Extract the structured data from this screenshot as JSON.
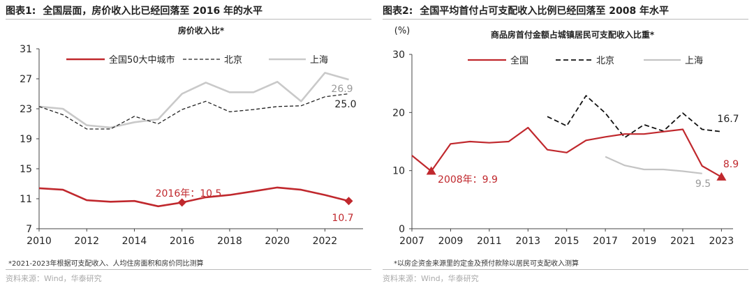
{
  "charts": [
    {
      "title_label": "图表1:",
      "title_text": "全国层面，房价收入比已经回落至 2016 年的水平",
      "note": "*2021-2023年根据可支配收入、人均住房面积和房价同比测算",
      "source": "资料来源：Wind，华泰研究",
      "chart_data": {
        "type": "line",
        "title": "房价收入比*",
        "ylabel_unit": "",
        "ylim": [
          7,
          31
        ],
        "yticks": [
          "7",
          "11",
          "15",
          "19",
          "23",
          "27",
          "31"
        ],
        "xlim": [
          2010,
          2023.6
        ],
        "xticks": [
          "2010",
          "2012",
          "2014",
          "2016",
          "2018",
          "2020",
          "2022"
        ],
        "series": [
          {
            "name": "全国50大中城市",
            "color": "#c0282d",
            "dash": "",
            "width": 2.6,
            "x": [
              2010,
              2011,
              2012,
              2013,
              2014,
              2015,
              2016,
              2017,
              2018,
              2019,
              2020,
              2021,
              2022,
              2023
            ],
            "values": [
              12.4,
              12.2,
              10.8,
              10.6,
              10.7,
              10.0,
              10.5,
              11.2,
              11.5,
              12.0,
              12.5,
              12.2,
              11.5,
              10.7
            ]
          },
          {
            "name": "北京",
            "color": "#222222",
            "dash": "5,3",
            "width": 1.3,
            "x": [
              2010,
              2011,
              2012,
              2013,
              2014,
              2015,
              2016,
              2017,
              2018,
              2019,
              2020,
              2021,
              2022,
              2023
            ],
            "values": [
              23.3,
              22.2,
              20.3,
              20.3,
              22.0,
              21.0,
              22.9,
              24.0,
              22.6,
              22.9,
              23.3,
              23.4,
              24.6,
              25.0
            ]
          },
          {
            "name": "上海",
            "color": "#c9c9c9",
            "dash": "",
            "width": 2.6,
            "x": [
              2010,
              2011,
              2012,
              2013,
              2014,
              2015,
              2016,
              2017,
              2018,
              2019,
              2020,
              2021,
              2022,
              2023
            ],
            "values": [
              23.3,
              23.0,
              20.8,
              20.5,
              21.2,
              21.6,
              25.0,
              26.5,
              25.2,
              25.2,
              26.6,
              24.0,
              27.8,
              26.9
            ]
          }
        ],
        "annotations": [
          {
            "text": "2016年：10.5",
            "color": "#c0282d"
          },
          {
            "text": "10.7",
            "color": "#c0282d"
          },
          {
            "text": "26.9",
            "color": "#999999"
          },
          {
            "text": "25.0",
            "color": "#222222"
          }
        ]
      }
    },
    {
      "title_label": "图表2:",
      "title_text": "全国平均首付占可支配收入比例已经回落至 2008 年水平",
      "note": "*以房企资金来源里的定金及预付款除以居民可支配收入测算",
      "source": "资料来源：Wind，华泰研究",
      "chart_data": {
        "type": "line",
        "title": "商品房首付金额占城镇居民可支配收入比重*",
        "ylabel_unit": "(%)",
        "ylim": [
          0,
          30
        ],
        "yticks": [
          "0",
          "10",
          "20",
          "30"
        ],
        "xlim": [
          2007,
          2023.6
        ],
        "xticks": [
          "2007",
          "2009",
          "2011",
          "2013",
          "2015",
          "2017",
          "2019",
          "2021",
          "2023"
        ],
        "series": [
          {
            "name": "全国",
            "color": "#c0282d",
            "dash": "",
            "width": 2.2,
            "x": [
              2007,
              2008,
              2009,
              2010,
              2011,
              2012,
              2013,
              2014,
              2015,
              2016,
              2017,
              2018,
              2019,
              2020,
              2021,
              2022,
              2023
            ],
            "values": [
              12.6,
              9.9,
              14.6,
              15.0,
              14.8,
              15.0,
              17.4,
              13.6,
              13.1,
              15.2,
              15.8,
              16.3,
              16.3,
              16.7,
              17.1,
              10.8,
              8.9
            ]
          },
          {
            "name": "北京",
            "color": "#111111",
            "dash": "7,4",
            "width": 1.8,
            "x": [
              2014,
              2015,
              2016,
              2017,
              2018,
              2019,
              2020,
              2021,
              2022,
              2023
            ],
            "values": [
              19.3,
              17.7,
              22.9,
              19.9,
              15.7,
              17.9,
              16.8,
              19.9,
              17.1,
              16.7
            ]
          },
          {
            "name": "上海",
            "color": "#c4c4c4",
            "dash": "",
            "width": 2.2,
            "x": [
              2017,
              2018,
              2019,
              2020,
              2021,
              2022
            ],
            "values": [
              12.4,
              10.9,
              10.2,
              10.2,
              9.9,
              9.5
            ]
          }
        ],
        "annotations": [
          {
            "text": "2008年：9.9",
            "color": "#c0282d"
          },
          {
            "text": "8.9",
            "color": "#c0282d"
          },
          {
            "text": "16.7",
            "color": "#222222"
          },
          {
            "text": "9.5",
            "color": "#999999"
          }
        ]
      }
    }
  ]
}
